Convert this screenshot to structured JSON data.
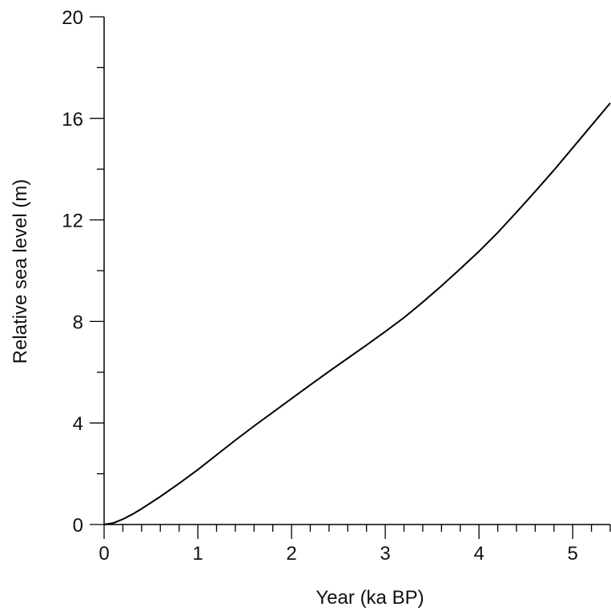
{
  "chart_data": {
    "type": "line",
    "title": "",
    "xlabel": "Year (ka BP)",
    "ylabel": "Relative sea level (m)",
    "xlim": [
      0,
      5.4
    ],
    "ylim": [
      0,
      20
    ],
    "x_ticks": [
      0,
      1,
      2,
      3,
      4,
      5
    ],
    "x_tick_labels": [
      "0",
      "1",
      "2",
      "3",
      "4",
      "5"
    ],
    "x_minor_step": 0.2,
    "y_ticks": [
      0,
      4,
      8,
      12,
      16,
      20
    ],
    "y_tick_labels": [
      "0",
      "4",
      "8",
      "12",
      "16",
      "20"
    ],
    "y_minor_step": 2,
    "grid": false,
    "legend": "none",
    "line_color": "#000000",
    "series": [
      {
        "x": [
          0,
          0.1,
          0.2,
          0.3,
          0.4,
          0.5,
          0.6,
          0.8,
          1.0,
          1.2,
          1.4,
          1.6,
          1.8,
          2.0,
          2.2,
          2.4,
          2.6,
          2.8,
          3.0,
          3.2,
          3.4,
          3.6,
          3.8,
          4.0,
          4.2,
          4.4,
          4.6,
          4.8,
          5.0,
          5.2,
          5.4
        ],
        "y": [
          0,
          0.06,
          0.21,
          0.4,
          0.62,
          0.86,
          1.1,
          1.62,
          2.16,
          2.74,
          3.32,
          3.88,
          4.42,
          4.96,
          5.5,
          6.03,
          6.55,
          7.07,
          7.6,
          8.15,
          8.76,
          9.4,
          10.07,
          10.76,
          11.5,
          12.3,
          13.12,
          13.96,
          14.84,
          15.72,
          16.6
        ]
      }
    ]
  }
}
